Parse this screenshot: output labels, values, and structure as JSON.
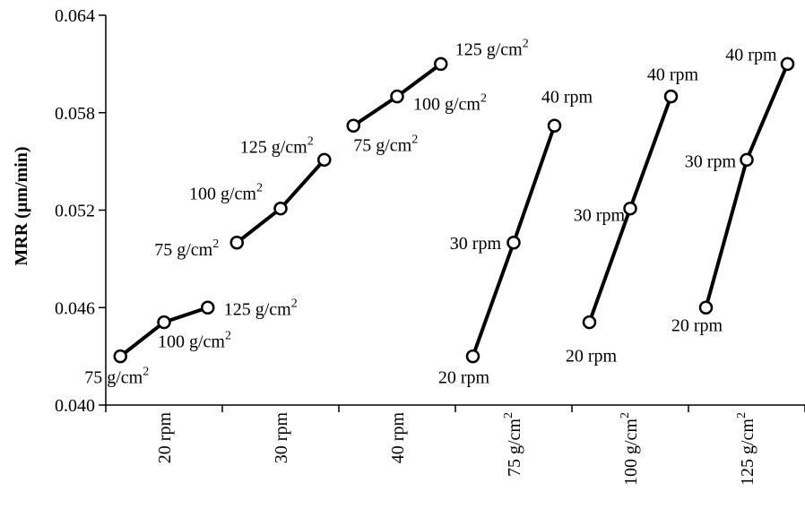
{
  "chart_data": {
    "type": "line",
    "ylabel": "MRR (µm/min)",
    "ylim": [
      0.04,
      0.064
    ],
    "yticks": [
      "0.064",
      "0.058",
      "0.052",
      "0.046",
      "0.040"
    ],
    "ytick_values": [
      0.064,
      0.058,
      0.052,
      0.046,
      0.04
    ],
    "categories": [
      {
        "label": "20 rpm",
        "sup": ""
      },
      {
        "label": "30 rpm",
        "sup": ""
      },
      {
        "label": "40 rpm",
        "sup": ""
      },
      {
        "label": "75 g/cm",
        "sup": "2"
      },
      {
        "label": "100 g/cm",
        "sup": "2"
      },
      {
        "label": "125 g/cm",
        "sup": "2"
      }
    ],
    "series": [
      {
        "category": "20 rpm",
        "points": [
          {
            "label": "75 g/cm",
            "sup": "2",
            "y": 0.043
          },
          {
            "label": "100 g/cm",
            "sup": "2",
            "y": 0.0451
          },
          {
            "label": "125 g/cm",
            "sup": "2",
            "y": 0.046
          }
        ]
      },
      {
        "category": "30 rpm",
        "points": [
          {
            "label": "75 g/cm",
            "sup": "2",
            "y": 0.05
          },
          {
            "label": "100 g/cm",
            "sup": "2",
            "y": 0.0521
          },
          {
            "label": "125 g/cm",
            "sup": "2",
            "y": 0.0551
          }
        ]
      },
      {
        "category": "40 rpm",
        "points": [
          {
            "label": "75 g/cm",
            "sup": "2",
            "y": 0.0572
          },
          {
            "label": "100 g/cm",
            "sup": "2",
            "y": 0.059
          },
          {
            "label": "125 g/cm",
            "sup": "2",
            "y": 0.061
          }
        ]
      },
      {
        "category": "75 g/cm2",
        "points": [
          {
            "label": "20 rpm",
            "sup": "",
            "y": 0.043
          },
          {
            "label": "30 rpm",
            "sup": "",
            "y": 0.05
          },
          {
            "label": "40 rpm",
            "sup": "",
            "y": 0.0572
          }
        ]
      },
      {
        "category": "100 g/cm2",
        "points": [
          {
            "label": "20 rpm",
            "sup": "",
            "y": 0.0451
          },
          {
            "label": "30 rpm",
            "sup": "",
            "y": 0.0521
          },
          {
            "label": "40 rpm",
            "sup": "",
            "y": 0.059
          }
        ]
      },
      {
        "category": "125 g/cm2",
        "points": [
          {
            "label": "20 rpm",
            "sup": "",
            "y": 0.046
          },
          {
            "label": "30 rpm",
            "sup": "",
            "y": 0.0551
          },
          {
            "label": "40 rpm",
            "sup": "",
            "y": 0.061
          }
        ]
      }
    ]
  }
}
